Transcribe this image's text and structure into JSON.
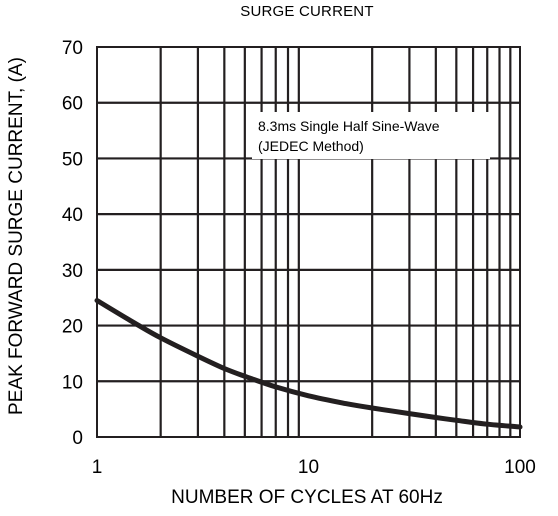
{
  "chart_data": {
    "type": "line",
    "title": "SURGE CURRENT",
    "xlabel": "NUMBER OF CYCLES AT 60Hz",
    "ylabel": "PEAK FORWARD SURGE CURRENT, (A)",
    "x_scale": "log",
    "xlim": [
      1,
      100
    ],
    "ylim": [
      0,
      70
    ],
    "x_ticks": [
      1,
      10,
      100
    ],
    "x_tick_labels": [
      "1",
      "10",
      "100"
    ],
    "y_ticks": [
      0,
      10,
      20,
      30,
      40,
      50,
      60,
      70
    ],
    "y_tick_labels": [
      "0",
      "10",
      "20",
      "30",
      "40",
      "50",
      "60",
      "70"
    ],
    "grid": true,
    "annotation_lines": [
      "8.3ms Single Half Sine-Wave",
      "(JEDEC Method)"
    ],
    "series": [
      {
        "x": [
          1,
          1.5,
          2,
          3,
          4,
          5,
          7,
          10,
          15,
          20,
          30,
          40,
          50,
          70,
          100
        ],
        "y": [
          24.5,
          20.5,
          17.8,
          14.5,
          12.3,
          10.9,
          9.0,
          7.4,
          6.0,
          5.2,
          4.2,
          3.5,
          3.0,
          2.3,
          1.8
        ]
      }
    ],
    "colors": {
      "line": "#231f20",
      "grid": "#231f20"
    }
  }
}
